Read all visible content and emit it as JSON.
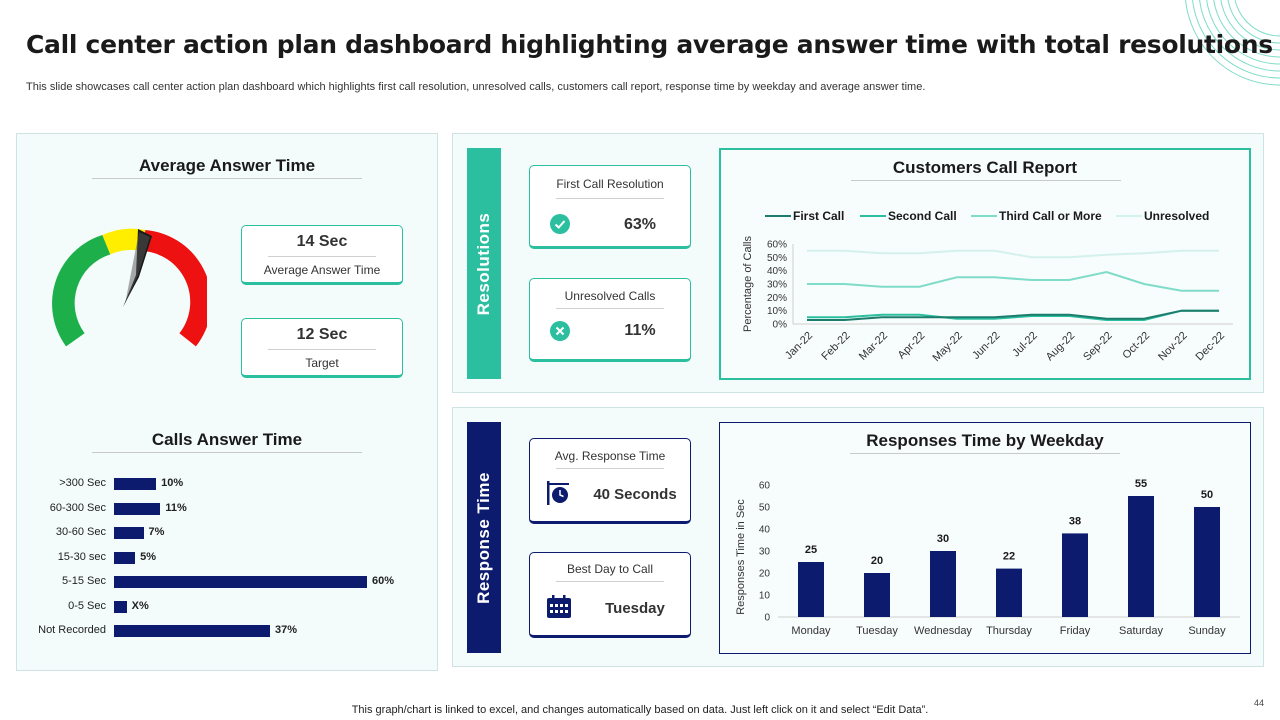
{
  "header": {
    "title": "Call center action plan dashboard highlighting average answer time with total resolutions",
    "subtitle": "This slide showcases call center action plan dashboard which highlights first call resolution, unresolved calls, customers call report, response time by weekday and average answer time."
  },
  "average_answer_time": {
    "title": "Average Answer Time",
    "gauge_fraction": 0.6,
    "kpis": [
      {
        "value": "14 Sec",
        "label": "Average Answer Time"
      },
      {
        "value": "12 Sec",
        "label": "Target"
      }
    ]
  },
  "calls_answer_time": {
    "title": "Calls Answer Time",
    "chart_data": {
      "type": "bar",
      "orientation": "horizontal",
      "categories": [
        ">300 Sec",
        "60-300 Sec",
        "30-60 Sec",
        "15-30 sec",
        "5-15 Sec",
        "0-5 Sec",
        "Not Recorded"
      ],
      "values": [
        10,
        11,
        7,
        5,
        60,
        3,
        37
      ],
      "labels": [
        "10%",
        "11%",
        "7%",
        "5%",
        "60%",
        "X%",
        "37%"
      ]
    }
  },
  "resolutions": {
    "label": "Resolutions",
    "kpis": [
      {
        "label": "First Call Resolution",
        "value": "63%",
        "icon": "check-icon"
      },
      {
        "label": "Unresolved Calls",
        "value": "11%",
        "icon": "x-icon"
      }
    ]
  },
  "response_time": {
    "label": "Response Time",
    "kpis": [
      {
        "label": "Avg. Response Time",
        "value": "40 Seconds",
        "icon": "clock-sign-icon"
      },
      {
        "label": "Best Day to Call",
        "value": "Tuesday",
        "icon": "calendar-icon"
      }
    ]
  },
  "customers_call_report": {
    "title": "Customers Call Report",
    "chart_data": {
      "type": "line",
      "categories": [
        "Jan-22",
        "Feb-22",
        "Mar-22",
        "Apr-22",
        "May-22",
        "Jun-22",
        "Jul-22",
        "Aug-22",
        "Sep-22",
        "Oct-22",
        "Nov-22",
        "Dec-22"
      ],
      "ylabel": "Percentage of Calls",
      "yticks": [
        "0%",
        "10%",
        "20%",
        "30%",
        "40%",
        "50%",
        "60%"
      ],
      "ylim": [
        0,
        60
      ],
      "legend_position": "top",
      "series": [
        {
          "name": "First Call",
          "color": "#1d7d6c",
          "values": [
            3,
            3,
            5,
            5,
            5,
            5,
            7,
            7,
            4,
            4,
            10,
            10
          ]
        },
        {
          "name": "Second Call",
          "color": "#2bbfa0",
          "values": [
            5,
            5,
            7,
            7,
            4,
            4,
            6,
            6,
            3,
            3,
            10,
            10
          ]
        },
        {
          "name": "Third Call or More",
          "color": "#7fdcc8",
          "values": [
            30,
            30,
            28,
            28,
            35,
            35,
            33,
            33,
            39,
            30,
            25,
            25
          ]
        },
        {
          "name": "Unresolved",
          "color": "#d4f1ec",
          "values": [
            55,
            55,
            53,
            53,
            55,
            55,
            50,
            50,
            52,
            53,
            55,
            55
          ]
        }
      ]
    }
  },
  "responses_by_weekday": {
    "title": "Responses Time by Weekday",
    "chart_data": {
      "type": "bar",
      "categories": [
        "Monday",
        "Tuesday",
        "Wednesday",
        "Thursday",
        "Friday",
        "Saturday",
        "Sunday"
      ],
      "values": [
        25,
        20,
        30,
        22,
        38,
        55,
        50
      ],
      "ylabel": "Responses Time in Sec",
      "yticks": [
        0,
        10,
        20,
        30,
        40,
        50,
        60
      ],
      "ylim": [
        0,
        60
      ],
      "color": "#0d1b6e"
    }
  },
  "footer": {
    "note": "This graph/chart is linked to excel,  and changes automatically based on data. Just left click on it and select “Edit Data”.",
    "page": "44"
  },
  "colors": {
    "teal": "#2bbfa0",
    "navy": "#0d1b6e",
    "gauge_green": "#1db04a",
    "gauge_yellow": "#ffee00",
    "gauge_red": "#ee1111"
  }
}
